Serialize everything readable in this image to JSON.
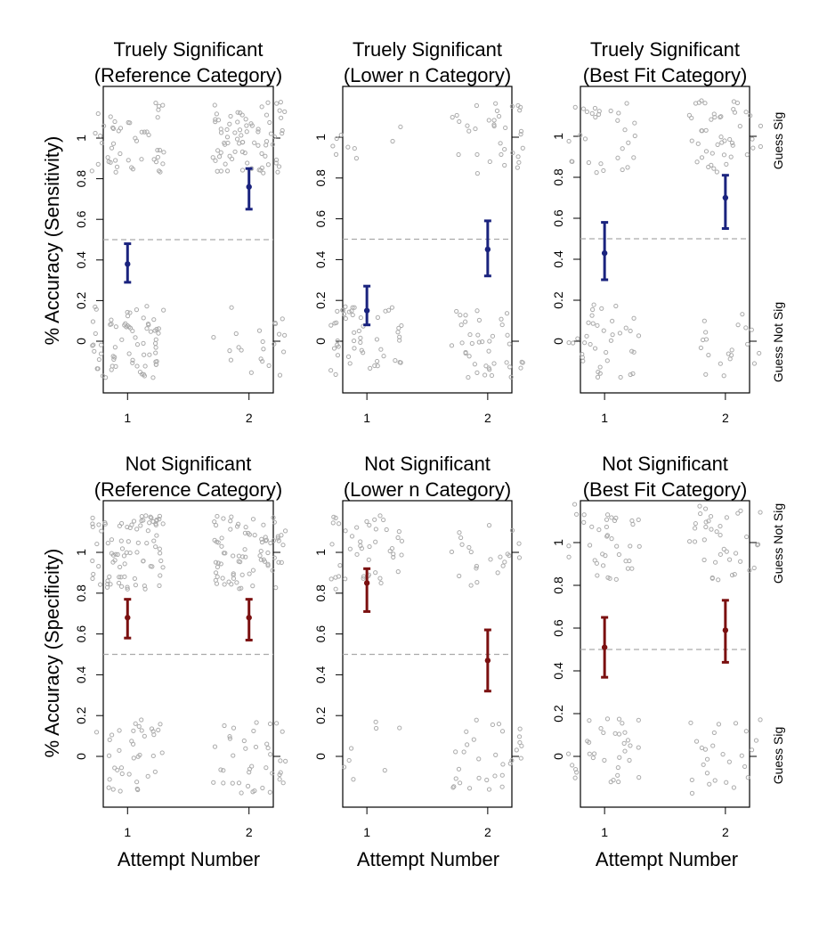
{
  "colors": {
    "sensitivity": "#1a237e",
    "specificity": "#7b1010",
    "jitter": "#aaaaaa",
    "reference_line": "#aaaaaa"
  },
  "figure": {
    "row_ylabels": [
      "% Accuracy (Sensitivity)",
      "% Accuracy (Specificity)"
    ],
    "xlabel": "Attempt Number",
    "side_labels": [
      {
        "top": "Guess Sig",
        "bottom": "Guess Not Sig"
      },
      {
        "top": "Guess Not Sig",
        "bottom": "Guess Sig"
      }
    ]
  },
  "chart_data": [
    {
      "type": "scatter",
      "title": [
        "Truely Significant",
        "(Reference Category)"
      ],
      "x_ticks": [
        "1",
        "2"
      ],
      "y_ticks": [
        "0",
        "0.2",
        "0.4",
        "0.6",
        "0.8",
        "1"
      ],
      "ylim": [
        -0.2,
        1.2
      ],
      "reference_line": 0.5,
      "jitter_counts": {
        "attempt1": {
          "guess_sig": 48,
          "guess_not_sig": 72
        },
        "attempt2": {
          "guess_sig": 78,
          "guess_not_sig": 22
        }
      },
      "series": [
        {
          "x": [
            1,
            2
          ],
          "y": [
            0.38,
            0.76
          ],
          "lower": [
            0.29,
            0.65
          ],
          "upper": [
            0.48,
            0.85
          ]
        }
      ]
    },
    {
      "type": "scatter",
      "title": [
        "Truely Significant",
        "(Lower n Category)"
      ],
      "x_ticks": [
        "1",
        "2"
      ],
      "y_ticks": [
        "0",
        "0.2",
        "0.4",
        "0.6",
        "0.8",
        "1"
      ],
      "ylim": [
        -0.2,
        1.2
      ],
      "reference_line": 0.5,
      "jitter_counts": {
        "attempt1": {
          "guess_sig": 9,
          "guess_not_sig": 52
        },
        "attempt2": {
          "guess_sig": 34,
          "guess_not_sig": 40
        }
      },
      "series": [
        {
          "x": [
            1,
            2
          ],
          "y": [
            0.15,
            0.45
          ],
          "lower": [
            0.08,
            0.32
          ],
          "upper": [
            0.27,
            0.59
          ]
        }
      ]
    },
    {
      "type": "scatter",
      "title": [
        "Truely Significant",
        "(Best Fit Category)"
      ],
      "x_ticks": [
        "1",
        "2"
      ],
      "y_ticks": [
        "0",
        "0.2",
        "0.4",
        "0.6",
        "0.8",
        "1"
      ],
      "ylim": [
        -0.2,
        1.2
      ],
      "reference_line": 0.5,
      "jitter_counts": {
        "attempt1": {
          "guess_sig": 30,
          "guess_not_sig": 38
        },
        "attempt2": {
          "guess_sig": 46,
          "guess_not_sig": 20
        }
      },
      "series": [
        {
          "x": [
            1,
            2
          ],
          "y": [
            0.43,
            0.7
          ],
          "lower": [
            0.3,
            0.55
          ],
          "upper": [
            0.58,
            0.81
          ]
        }
      ]
    },
    {
      "type": "scatter",
      "title": [
        "Not Significant",
        "(Reference Category)"
      ],
      "x_ticks": [
        "1",
        "2"
      ],
      "y_ticks": [
        "0",
        "0.2",
        "0.4",
        "0.6",
        "0.8",
        "1"
      ],
      "ylim": [
        -0.2,
        1.2
      ],
      "reference_line": 0.5,
      "jitter_counts": {
        "attempt1": {
          "guess_not_sig": 85,
          "guess_sig": 38
        },
        "attempt2": {
          "guess_not_sig": 80,
          "guess_sig": 40
        }
      },
      "series": [
        {
          "x": [
            1,
            2
          ],
          "y": [
            0.68,
            0.68
          ],
          "lower": [
            0.58,
            0.57
          ],
          "upper": [
            0.77,
            0.77
          ]
        }
      ]
    },
    {
      "type": "scatter",
      "title": [
        "Not Significant",
        "(Lower n Category)"
      ],
      "x_ticks": [
        "1",
        "2"
      ],
      "y_ticks": [
        "0",
        "0.2",
        "0.4",
        "0.6",
        "0.8",
        "1"
      ],
      "ylim": [
        -0.2,
        1.2
      ],
      "reference_line": 0.5,
      "jitter_counts": {
        "attempt1": {
          "guess_not_sig": 45,
          "guess_sig": 8
        },
        "attempt2": {
          "guess_not_sig": 22,
          "guess_sig": 32
        }
      },
      "series": [
        {
          "x": [
            1,
            2
          ],
          "y": [
            0.85,
            0.47
          ],
          "lower": [
            0.71,
            0.32
          ],
          "upper": [
            0.92,
            0.62
          ]
        }
      ]
    },
    {
      "type": "scatter",
      "title": [
        "Not Significant",
        "(Best Fit Category)"
      ],
      "x_ticks": [
        "1",
        "2"
      ],
      "y_ticks": [
        "0",
        "0.2",
        "0.4",
        "0.6",
        "0.8",
        "1"
      ],
      "ylim": [
        -0.2,
        1.2
      ],
      "reference_line": 0.5,
      "jitter_counts": {
        "attempt1": {
          "guess_not_sig": 38,
          "guess_sig": 34
        },
        "attempt2": {
          "guess_not_sig": 38,
          "guess_sig": 26
        }
      },
      "series": [
        {
          "x": [
            1,
            2
          ],
          "y": [
            0.51,
            0.59
          ],
          "lower": [
            0.37,
            0.44
          ],
          "upper": [
            0.65,
            0.73
          ]
        }
      ]
    }
  ]
}
